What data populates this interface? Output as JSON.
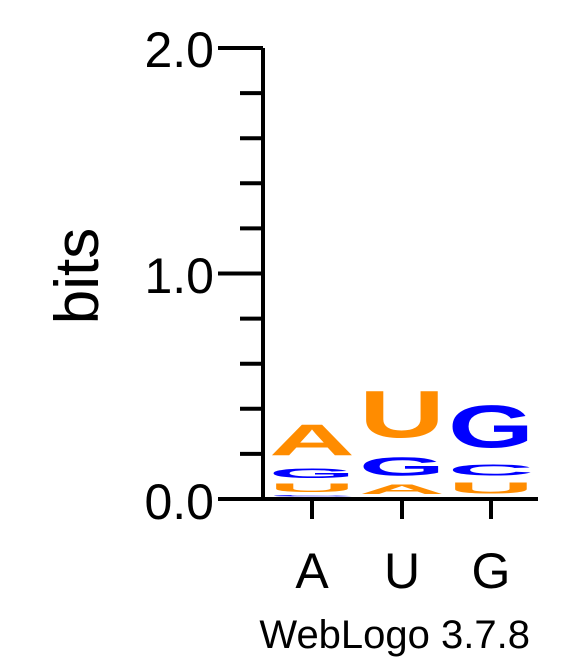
{
  "chart_data": {
    "type": "sequence-logo",
    "ylabel": "bits",
    "ylim": [
      0,
      2
    ],
    "y_ticks": [
      "0.0",
      "1.0",
      "2.0"
    ],
    "positions": [
      "A",
      "U",
      "G"
    ],
    "stacks": [
      [
        {
          "letter": "C",
          "bits": 0.01,
          "color": "#0000FF"
        },
        {
          "letter": "U",
          "bits": 0.06,
          "color": "#FF8C00"
        },
        {
          "letter": "G",
          "bits": 0.07,
          "color": "#0000FF"
        },
        {
          "letter": "A",
          "bits": 0.22,
          "color": "#FF8C00"
        }
      ],
      [
        {
          "letter": "A",
          "bits": 0.07,
          "color": "#FF8C00"
        },
        {
          "letter": "G",
          "bits": 0.13,
          "color": "#0000FF"
        },
        {
          "letter": "U",
          "bits": 0.33,
          "color": "#FF8C00"
        }
      ],
      [
        {
          "letter": "U",
          "bits": 0.08,
          "color": "#FF8C00"
        },
        {
          "letter": "C",
          "bits": 0.08,
          "color": "#0000FF"
        },
        {
          "letter": "G",
          "bits": 0.3,
          "color": "#0000FF"
        }
      ]
    ]
  },
  "footer": "WebLogo 3.7.8"
}
